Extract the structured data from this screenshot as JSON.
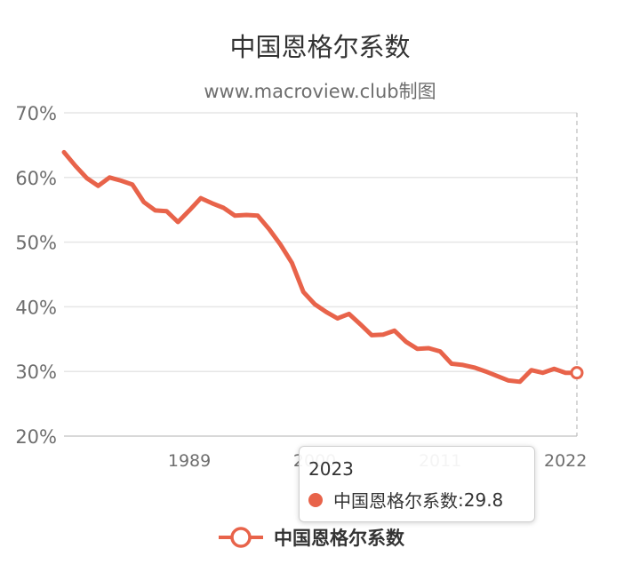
{
  "chart_data": {
    "type": "line",
    "title": "中国恩格尔系数",
    "subtitle": "www.macroview.club制图",
    "x_ticks": [
      1989,
      2000,
      2011,
      2022
    ],
    "y_ticks": [
      "20%",
      "30%",
      "40%",
      "50%",
      "60%",
      "70%"
    ],
    "ylim": [
      20,
      70
    ],
    "xlim": [
      1978,
      2023
    ],
    "grid": true,
    "legend_position": "bottom-center",
    "series": [
      {
        "name": "中国恩格尔系数",
        "color": "#e8634a",
        "x": [
          1978,
          1979,
          1980,
          1981,
          1982,
          1983,
          1984,
          1985,
          1986,
          1987,
          1988,
          1989,
          1990,
          1991,
          1992,
          1993,
          1994,
          1995,
          1996,
          1997,
          1998,
          1999,
          2000,
          2001,
          2002,
          2003,
          2004,
          2005,
          2006,
          2007,
          2008,
          2009,
          2010,
          2011,
          2012,
          2013,
          2014,
          2015,
          2016,
          2017,
          2018,
          2019,
          2020,
          2021,
          2022,
          2023
        ],
        "values": [
          63.9,
          61.8,
          59.9,
          58.7,
          60.0,
          59.5,
          58.9,
          56.2,
          54.9,
          54.8,
          53.1,
          54.9,
          56.8,
          56.0,
          55.3,
          54.1,
          54.2,
          54.1,
          52.0,
          49.6,
          46.8,
          42.3,
          40.4,
          39.2,
          38.2,
          38.9,
          37.3,
          35.6,
          35.7,
          36.3,
          34.6,
          33.5,
          33.6,
          33.1,
          31.2,
          31.0,
          30.6,
          30.0,
          29.3,
          28.6,
          28.4,
          30.2,
          29.8,
          30.4,
          29.8,
          29.8
        ]
      }
    ],
    "tooltip": {
      "title": "2023",
      "series_name": "中国恩格尔系数",
      "value": "29.8"
    }
  }
}
